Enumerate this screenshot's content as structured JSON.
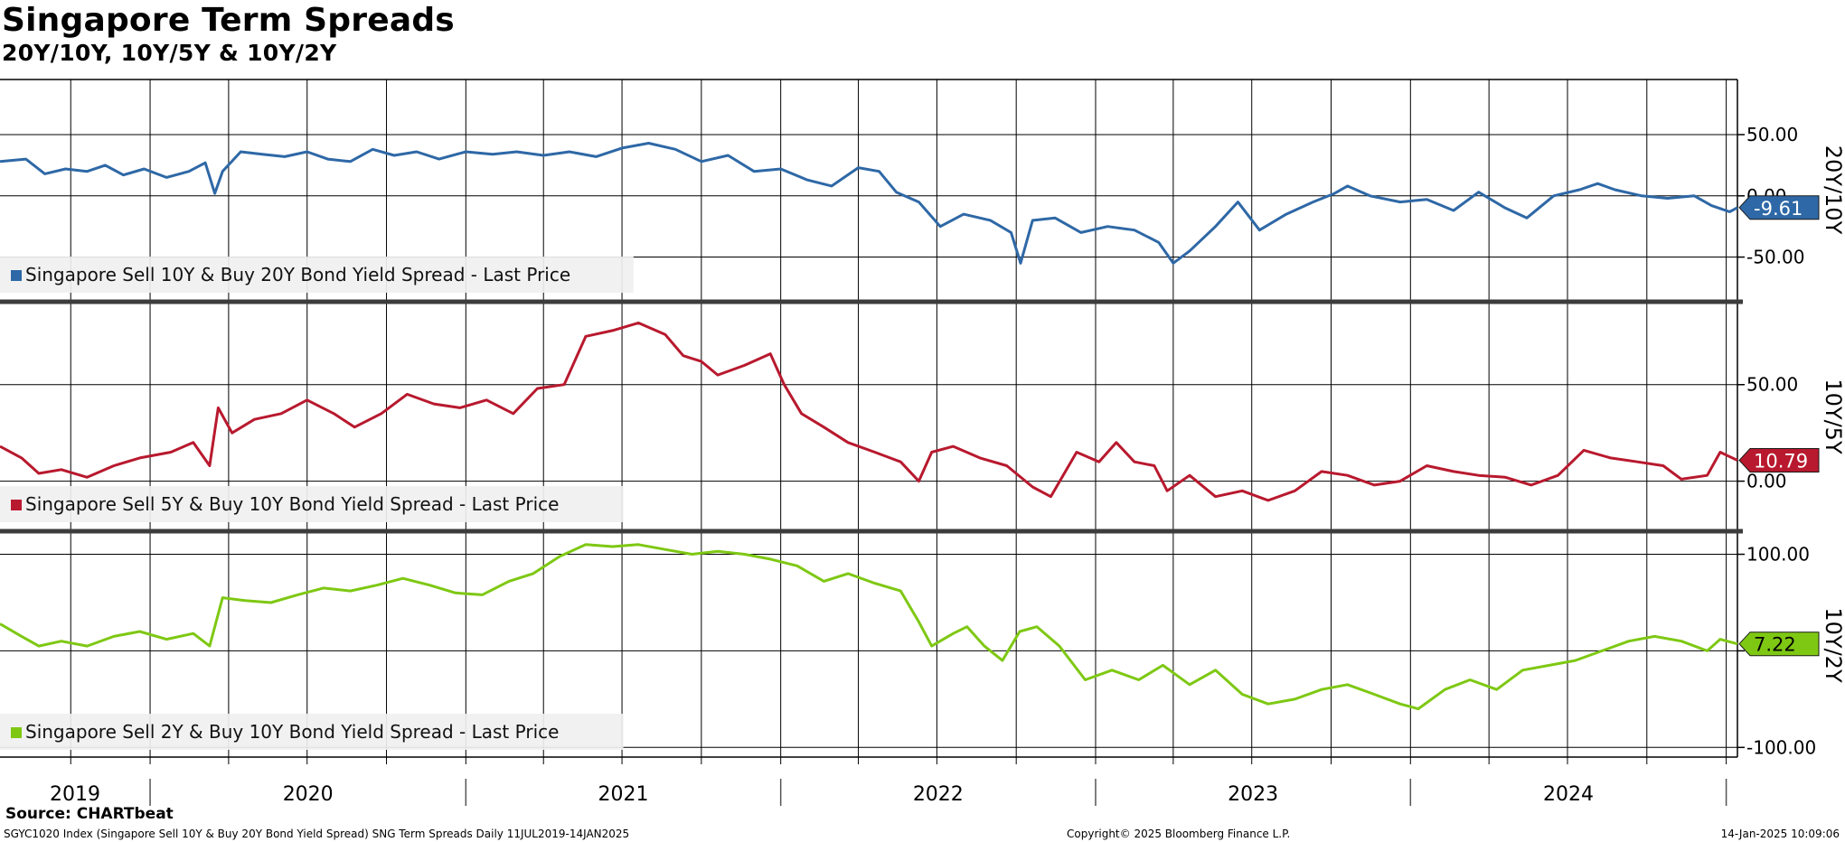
{
  "header": {
    "title": "Singapore Term Spreads",
    "subtitle": "20Y/10Y, 10Y/5Y & 10Y/2Y"
  },
  "footer": {
    "source": "Source: CHARTbeat",
    "left": "SGYC1020 Index (Singapore Sell 10Y & Buy 20Y Bond Yield Spread) SNG Term Spreads  Daily 11JUL2019-14JAN2025",
    "center": "Copyright© 2025 Bloomberg Finance L.P.",
    "right": "14-Jan-2025 10:09:06"
  },
  "colors": {
    "s20_10": "#2e68a6",
    "s10_5": "#b8192e",
    "s10_2": "#7ec813",
    "grid": "#000000"
  },
  "chart_data": {
    "type": "line",
    "x_range": [
      "2019-07-11",
      "2025-01-14"
    ],
    "x_tick_labels": [
      "2019",
      "2020",
      "2021",
      "2022",
      "2023",
      "2024"
    ],
    "panels": [
      {
        "id": "s20_10",
        "axis_label": "20Y/10Y",
        "legend": "Singapore Sell 10Y & Buy 20Y Bond Yield Spread - Last Price",
        "last_value_label": "-9.61",
        "y_ticks": [
          50,
          0,
          -50
        ],
        "y_tick_labels": [
          "50.00",
          "0.00",
          "-50.00"
        ],
        "y_range": [
          -85,
          95
        ],
        "series": [
          [
            "2019-07-11",
            28
          ],
          [
            "2019-08-10",
            30
          ],
          [
            "2019-09-01",
            18
          ],
          [
            "2019-09-25",
            22
          ],
          [
            "2019-10-20",
            20
          ],
          [
            "2019-11-10",
            25
          ],
          [
            "2019-12-01",
            17
          ],
          [
            "2019-12-25",
            22
          ],
          [
            "2020-01-20",
            15
          ],
          [
            "2020-02-15",
            20
          ],
          [
            "2020-03-05",
            27
          ],
          [
            "2020-03-16",
            2
          ],
          [
            "2020-03-25",
            20
          ],
          [
            "2020-04-15",
            36
          ],
          [
            "2020-05-10",
            34
          ],
          [
            "2020-06-05",
            32
          ],
          [
            "2020-07-01",
            36
          ],
          [
            "2020-07-25",
            30
          ],
          [
            "2020-08-20",
            28
          ],
          [
            "2020-09-15",
            38
          ],
          [
            "2020-10-10",
            33
          ],
          [
            "2020-11-05",
            36
          ],
          [
            "2020-12-01",
            30
          ],
          [
            "2021-01-01",
            36
          ],
          [
            "2021-02-01",
            34
          ],
          [
            "2021-03-01",
            36
          ],
          [
            "2021-04-01",
            33
          ],
          [
            "2021-05-01",
            36
          ],
          [
            "2021-06-01",
            32
          ],
          [
            "2021-07-01",
            39
          ],
          [
            "2021-08-01",
            43
          ],
          [
            "2021-09-01",
            38
          ],
          [
            "2021-10-01",
            28
          ],
          [
            "2021-11-01",
            33
          ],
          [
            "2021-12-01",
            20
          ],
          [
            "2022-01-01",
            22
          ],
          [
            "2022-02-01",
            13
          ],
          [
            "2022-03-01",
            8
          ],
          [
            "2022-04-01",
            23
          ],
          [
            "2022-04-25",
            20
          ],
          [
            "2022-05-15",
            3
          ],
          [
            "2022-06-10",
            -5
          ],
          [
            "2022-07-05",
            -25
          ],
          [
            "2022-08-01",
            -15
          ],
          [
            "2022-09-01",
            -20
          ],
          [
            "2022-09-25",
            -30
          ],
          [
            "2022-10-06",
            -55
          ],
          [
            "2022-10-20",
            -20
          ],
          [
            "2022-11-15",
            -18
          ],
          [
            "2022-12-15",
            -30
          ],
          [
            "2023-01-15",
            -25
          ],
          [
            "2023-02-15",
            -28
          ],
          [
            "2023-03-15",
            -38
          ],
          [
            "2023-04-01",
            -55
          ],
          [
            "2023-04-20",
            -45
          ],
          [
            "2023-05-20",
            -25
          ],
          [
            "2023-06-15",
            -5
          ],
          [
            "2023-07-10",
            -28
          ],
          [
            "2023-08-10",
            -15
          ],
          [
            "2023-09-10",
            -5
          ],
          [
            "2023-10-05",
            2
          ],
          [
            "2023-10-20",
            8
          ],
          [
            "2023-11-15",
            0
          ],
          [
            "2023-12-20",
            -5
          ],
          [
            "2024-01-20",
            -3
          ],
          [
            "2024-02-20",
            -12
          ],
          [
            "2024-03-20",
            3
          ],
          [
            "2024-04-20",
            -10
          ],
          [
            "2024-05-15",
            -18
          ],
          [
            "2024-06-15",
            0
          ],
          [
            "2024-07-15",
            5
          ],
          [
            "2024-08-05",
            10
          ],
          [
            "2024-08-25",
            5
          ],
          [
            "2024-09-25",
            0
          ],
          [
            "2024-10-25",
            -2
          ],
          [
            "2024-11-25",
            0
          ],
          [
            "2024-12-15",
            -8
          ],
          [
            "2025-01-05",
            -13
          ],
          [
            "2025-01-14",
            -9.61
          ]
        ]
      },
      {
        "id": "s10_5",
        "axis_label": "10Y/5Y",
        "legend": "Singapore Sell 5Y & Buy 10Y Bond Yield Spread - Last Price",
        "last_value_label": "10.79",
        "y_ticks": [
          50,
          0
        ],
        "y_tick_labels": [
          "50.00",
          "0.00"
        ],
        "y_range": [
          -25,
          92
        ],
        "series": [
          [
            "2019-07-11",
            18
          ],
          [
            "2019-08-05",
            12
          ],
          [
            "2019-08-25",
            4
          ],
          [
            "2019-09-20",
            6
          ],
          [
            "2019-10-20",
            2
          ],
          [
            "2019-11-20",
            8
          ],
          [
            "2019-12-20",
            12
          ],
          [
            "2020-01-25",
            15
          ],
          [
            "2020-02-20",
            20
          ],
          [
            "2020-03-10",
            8
          ],
          [
            "2020-03-20",
            38
          ],
          [
            "2020-04-05",
            25
          ],
          [
            "2020-05-01",
            32
          ],
          [
            "2020-06-01",
            35
          ],
          [
            "2020-07-01",
            42
          ],
          [
            "2020-08-01",
            35
          ],
          [
            "2020-08-25",
            28
          ],
          [
            "2020-09-25",
            35
          ],
          [
            "2020-10-25",
            45
          ],
          [
            "2020-11-25",
            40
          ],
          [
            "2020-12-25",
            38
          ],
          [
            "2021-01-25",
            42
          ],
          [
            "2021-02-25",
            35
          ],
          [
            "2021-03-25",
            48
          ],
          [
            "2021-04-25",
            50
          ],
          [
            "2021-05-20",
            75
          ],
          [
            "2021-06-20",
            78
          ],
          [
            "2021-07-20",
            82
          ],
          [
            "2021-08-20",
            76
          ],
          [
            "2021-09-10",
            65
          ],
          [
            "2021-10-01",
            62
          ],
          [
            "2021-10-20",
            55
          ],
          [
            "2021-11-20",
            60
          ],
          [
            "2021-12-20",
            66
          ],
          [
            "2022-01-05",
            50
          ],
          [
            "2022-01-25",
            35
          ],
          [
            "2022-02-20",
            28
          ],
          [
            "2022-03-20",
            20
          ],
          [
            "2022-04-20",
            15
          ],
          [
            "2022-05-20",
            10
          ],
          [
            "2022-06-10",
            0
          ],
          [
            "2022-06-25",
            15
          ],
          [
            "2022-07-20",
            18
          ],
          [
            "2022-08-20",
            12
          ],
          [
            "2022-09-20",
            8
          ],
          [
            "2022-10-20",
            -3
          ],
          [
            "2022-11-10",
            -8
          ],
          [
            "2022-12-10",
            15
          ],
          [
            "2023-01-05",
            10
          ],
          [
            "2023-01-25",
            20
          ],
          [
            "2023-02-15",
            10
          ],
          [
            "2023-03-10",
            8
          ],
          [
            "2023-03-25",
            -5
          ],
          [
            "2023-04-20",
            3
          ],
          [
            "2023-05-20",
            -8
          ],
          [
            "2023-06-20",
            -5
          ],
          [
            "2023-07-20",
            -10
          ],
          [
            "2023-08-20",
            -5
          ],
          [
            "2023-09-20",
            5
          ],
          [
            "2023-10-20",
            3
          ],
          [
            "2023-11-20",
            -2
          ],
          [
            "2023-12-20",
            0
          ],
          [
            "2024-01-20",
            8
          ],
          [
            "2024-02-20",
            5
          ],
          [
            "2024-03-20",
            3
          ],
          [
            "2024-04-20",
            2
          ],
          [
            "2024-05-20",
            -2
          ],
          [
            "2024-06-20",
            3
          ],
          [
            "2024-07-20",
            16
          ],
          [
            "2024-08-20",
            12
          ],
          [
            "2024-09-20",
            10
          ],
          [
            "2024-10-20",
            8
          ],
          [
            "2024-11-10",
            1
          ],
          [
            "2024-12-10",
            3
          ],
          [
            "2024-12-25",
            15
          ],
          [
            "2025-01-14",
            10.79
          ]
        ]
      },
      {
        "id": "s10_2",
        "axis_label": "10Y/2Y",
        "legend": "Singapore Sell 2Y & Buy 10Y Bond Yield Spread - Last Price",
        "last_value_label": "7.22",
        "y_ticks": [
          100,
          0,
          -100
        ],
        "y_tick_labels": [
          "100.00",
          "",
          "-100.00"
        ],
        "y_range": [
          -110,
          122
        ],
        "series": [
          [
            "2019-07-11",
            28
          ],
          [
            "2019-08-05",
            15
          ],
          [
            "2019-08-25",
            5
          ],
          [
            "2019-09-20",
            10
          ],
          [
            "2019-10-20",
            5
          ],
          [
            "2019-11-20",
            15
          ],
          [
            "2019-12-20",
            20
          ],
          [
            "2020-01-20",
            12
          ],
          [
            "2020-02-20",
            18
          ],
          [
            "2020-03-10",
            5
          ],
          [
            "2020-03-25",
            55
          ],
          [
            "2020-04-20",
            52
          ],
          [
            "2020-05-20",
            50
          ],
          [
            "2020-06-20",
            58
          ],
          [
            "2020-07-20",
            65
          ],
          [
            "2020-08-20",
            62
          ],
          [
            "2020-09-20",
            68
          ],
          [
            "2020-10-20",
            75
          ],
          [
            "2020-11-20",
            68
          ],
          [
            "2020-12-20",
            60
          ],
          [
            "2021-01-20",
            58
          ],
          [
            "2021-02-20",
            72
          ],
          [
            "2021-03-20",
            80
          ],
          [
            "2021-04-20",
            98
          ],
          [
            "2021-05-20",
            110
          ],
          [
            "2021-06-20",
            108
          ],
          [
            "2021-07-20",
            110
          ],
          [
            "2021-08-20",
            105
          ],
          [
            "2021-09-20",
            100
          ],
          [
            "2021-10-20",
            103
          ],
          [
            "2021-11-20",
            100
          ],
          [
            "2021-12-20",
            95
          ],
          [
            "2022-01-20",
            88
          ],
          [
            "2022-02-20",
            72
          ],
          [
            "2022-03-20",
            80
          ],
          [
            "2022-04-20",
            70
          ],
          [
            "2022-05-20",
            62
          ],
          [
            "2022-06-10",
            30
          ],
          [
            "2022-06-25",
            5
          ],
          [
            "2022-07-20",
            18
          ],
          [
            "2022-08-05",
            25
          ],
          [
            "2022-08-25",
            5
          ],
          [
            "2022-09-15",
            -10
          ],
          [
            "2022-10-05",
            20
          ],
          [
            "2022-10-25",
            25
          ],
          [
            "2022-11-20",
            5
          ],
          [
            "2022-12-20",
            -30
          ],
          [
            "2023-01-20",
            -20
          ],
          [
            "2023-02-20",
            -30
          ],
          [
            "2023-03-20",
            -15
          ],
          [
            "2023-04-20",
            -35
          ],
          [
            "2023-05-20",
            -20
          ],
          [
            "2023-06-20",
            -45
          ],
          [
            "2023-07-20",
            -55
          ],
          [
            "2023-08-20",
            -50
          ],
          [
            "2023-09-20",
            -40
          ],
          [
            "2023-10-20",
            -35
          ],
          [
            "2023-11-20",
            -45
          ],
          [
            "2023-12-20",
            -55
          ],
          [
            "2024-01-10",
            -60
          ],
          [
            "2024-02-10",
            -40
          ],
          [
            "2024-03-10",
            -30
          ],
          [
            "2024-04-10",
            -40
          ],
          [
            "2024-05-10",
            -20
          ],
          [
            "2024-06-10",
            -15
          ],
          [
            "2024-07-10",
            -10
          ],
          [
            "2024-08-10",
            0
          ],
          [
            "2024-09-10",
            10
          ],
          [
            "2024-10-10",
            15
          ],
          [
            "2024-11-10",
            10
          ],
          [
            "2024-12-10",
            0
          ],
          [
            "2024-12-25",
            12
          ],
          [
            "2025-01-14",
            7.22
          ]
        ]
      }
    ]
  }
}
